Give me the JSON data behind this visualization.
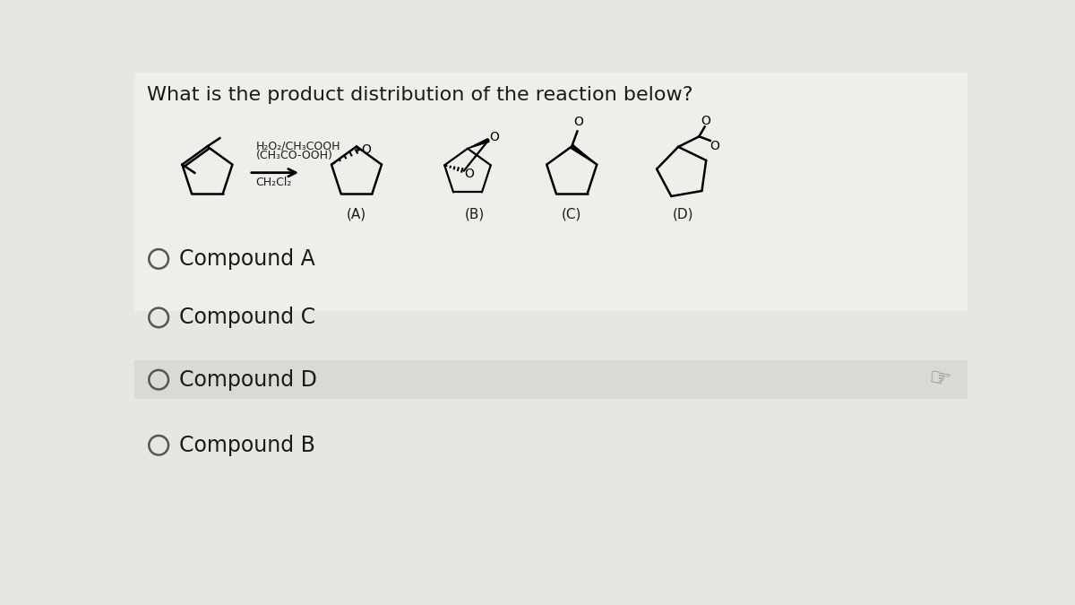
{
  "title": "What is the product distribution of the reaction below?",
  "reagent_line1": "H₂O₂/CH₃COOH",
  "reagent_line2": "(CH₃CO-OOH)",
  "reagent_line3": "CH₂Cl₂",
  "label_A": "(A)",
  "label_B": "(B)",
  "label_C": "(C)",
  "label_D": "(D)",
  "options": [
    "Compound A",
    "Compound C",
    "Compound D",
    "Compound B"
  ],
  "bg_color": "#e8e6e3",
  "top_section_bg": "#f0eeeb",
  "selected_row_bg": "#dbd9d6",
  "text_color": "#1a1a1a",
  "title_fontsize": 16,
  "option_fontsize": 17,
  "reagent_fontsize": 9,
  "label_fontsize": 11,
  "selected_row": 2
}
